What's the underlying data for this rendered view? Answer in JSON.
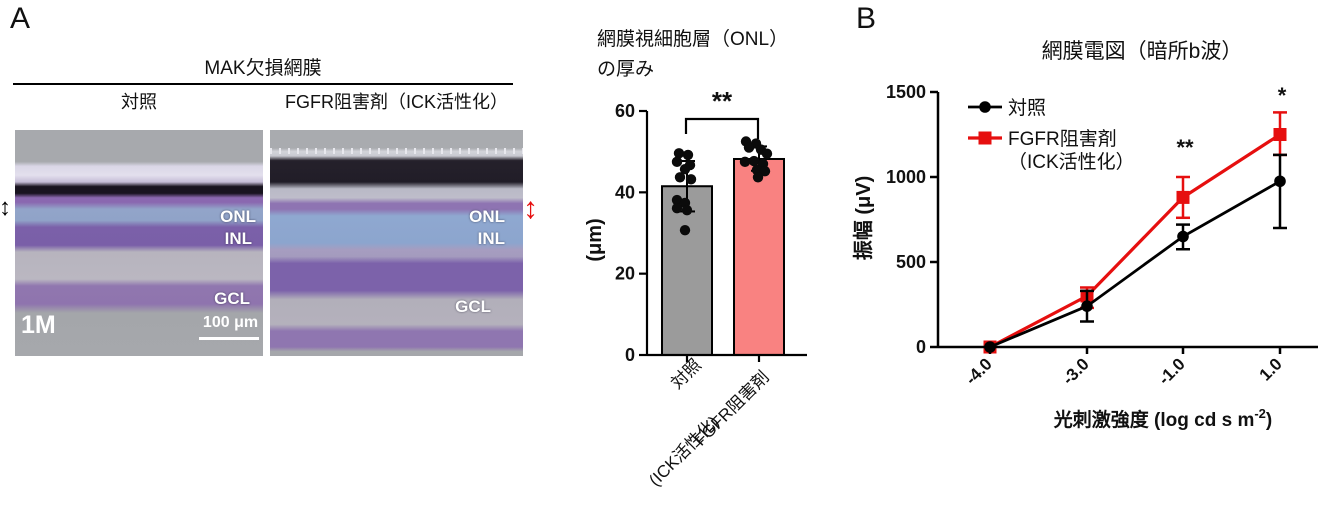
{
  "panel_a": {
    "label": "A",
    "group_title": "MAK欠損網膜",
    "columns": [
      "対照",
      "FGFR阻害剤（ICK活性化）"
    ],
    "histology": {
      "layer_labels": [
        "ONL",
        "INL",
        "GCL"
      ],
      "age_label": "1M",
      "scale_bar_label": "100 μm"
    }
  },
  "panel_b": {
    "label": "B"
  },
  "colors": {
    "control": "#000000",
    "treated": "#E60F0F",
    "bar_control": "#9B9B9B",
    "bar_treated": "#F98281",
    "axis": "#000000"
  },
  "chart_data": [
    {
      "type": "bar",
      "title": "網膜視細胞層（ONL）の厚み",
      "title_lines": [
        "網膜視細胞層（ONL）",
        "の厚み"
      ],
      "ylabel": "(μm)",
      "ylim": [
        0,
        60
      ],
      "yticks": [
        0,
        20,
        40,
        60
      ],
      "categories": [
        [
          "対照"
        ],
        [
          "FGFR阻害剤",
          "(ICK活性化)"
        ]
      ],
      "values": [
        41.5,
        48.2
      ],
      "bar_colors": [
        "#9B9B9B",
        "#F98281"
      ],
      "error_bars": [
        [
          35.3,
          47.7
        ],
        [
          45.3,
          51.3
        ]
      ],
      "scatter": [
        {
          "values": [
            49.6,
            49.2,
            47.5,
            46.7,
            45.7,
            43.7,
            43.2,
            38.1,
            37.4,
            36.1,
            35.6,
            30.7
          ],
          "jitter": [
            -8,
            1,
            -10,
            3,
            -2,
            -7,
            4,
            -10,
            -2,
            -10,
            0,
            -2
          ]
        },
        {
          "values": [
            52.5,
            52.0,
            51.0,
            50.5,
            49.5,
            47.7,
            47.5,
            47.0,
            45.5,
            45.2,
            43.7
          ],
          "jitter": [
            -13,
            -3,
            -10,
            2,
            8,
            -5,
            -14,
            4,
            -2,
            6,
            -1
          ]
        }
      ],
      "significance": "**",
      "grid": false,
      "legend_position": "none"
    },
    {
      "type": "line",
      "title": "網膜電図（暗所b波）",
      "xlabel": "光刺激強度 (log cd s m⁻²)",
      "xlabel_parts": {
        "main": "光刺激強度 (log cd s m",
        "sup": "-2",
        "close": ")"
      },
      "ylabel": "振幅 (μV)",
      "ylim": [
        0,
        1500
      ],
      "yticks": [
        0,
        500,
        1000,
        1500
      ],
      "x_tick_labels": [
        "-4.0",
        "-3.0",
        "-1.0",
        "1.0"
      ],
      "series": [
        {
          "name": "対照",
          "name_lines": [
            "対照"
          ],
          "color": "#000000",
          "marker": "circle",
          "values": [
            0,
            240,
            650,
            975
          ],
          "error_low": [
            0,
            150,
            575,
            700
          ],
          "error_high": [
            0,
            330,
            720,
            1130
          ]
        },
        {
          "name": "FGFR阻害剤（ICK活性化）",
          "name_lines": [
            "FGFR阻害剤",
            "（ICK活性化）"
          ],
          "color": "#E60F0F",
          "marker": "square",
          "values": [
            0,
            300,
            880,
            1250
          ],
          "error_low": [
            0,
            230,
            760,
            1130
          ],
          "error_high": [
            0,
            350,
            1000,
            1380
          ]
        }
      ],
      "annotations": [
        {
          "text": "**",
          "x_index": 2,
          "y": 1130
        },
        {
          "text": "*",
          "x_index": 3,
          "y": 1435
        }
      ],
      "legend_position": "upper left",
      "grid": false
    }
  ]
}
